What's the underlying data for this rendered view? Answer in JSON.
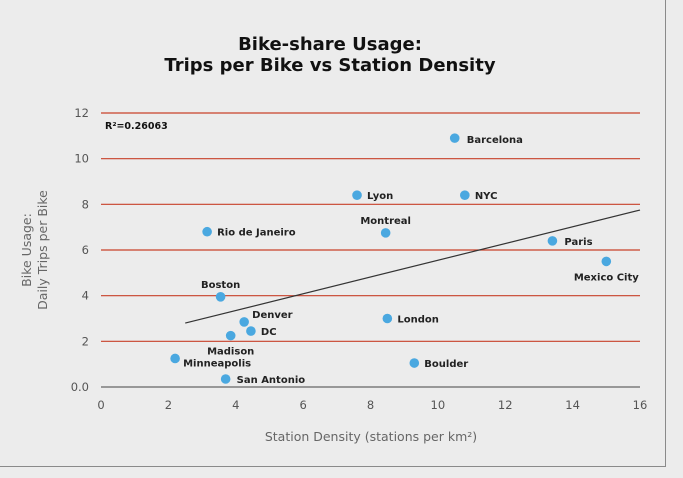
{
  "chart_data": {
    "type": "scatter",
    "title": [
      "Bike-share Usage:",
      "Trips per Bike vs Station Density"
    ],
    "xlabel": "Station Density (stations per km²)",
    "ylabel": [
      "Bike Usage:",
      "Daily Trips per Bike"
    ],
    "xlim": [
      0,
      16
    ],
    "ylim": [
      0,
      12
    ],
    "x_ticks": [
      "0",
      "2",
      "4",
      "6",
      "8",
      "10",
      "12",
      "14",
      "16"
    ],
    "y_ticks": [
      "0.0",
      "2",
      "4",
      "6",
      "8",
      "10",
      "12"
    ],
    "grid": "horizontal",
    "annotation": "R²=0.26063",
    "colors": {
      "point": "#4aa8e0",
      "grid": "#c8412a",
      "trend": "#333333",
      "axis": "#444444"
    },
    "points": [
      {
        "name": "Barcelona",
        "x": 10.5,
        "y": 10.9
      },
      {
        "name": "Lyon",
        "x": 7.6,
        "y": 8.4
      },
      {
        "name": "NYC",
        "x": 10.8,
        "y": 8.4
      },
      {
        "name": "Montreal",
        "x": 8.45,
        "y": 6.75
      },
      {
        "name": "Rio de Janeiro",
        "x": 3.15,
        "y": 6.8
      },
      {
        "name": "Paris",
        "x": 13.4,
        "y": 6.4
      },
      {
        "name": "Mexico City",
        "x": 15.0,
        "y": 5.5
      },
      {
        "name": "Boston",
        "x": 3.55,
        "y": 3.95
      },
      {
        "name": "Denver",
        "x": 4.25,
        "y": 2.85
      },
      {
        "name": "DC",
        "x": 4.45,
        "y": 2.45
      },
      {
        "name": "Madison",
        "x": 3.85,
        "y": 2.25
      },
      {
        "name": "London",
        "x": 8.5,
        "y": 3.0
      },
      {
        "name": "Minneapolis",
        "x": 2.2,
        "y": 1.25
      },
      {
        "name": "San Antonio",
        "x": 3.7,
        "y": 0.35
      },
      {
        "name": "Boulder",
        "x": 9.3,
        "y": 1.05
      }
    ],
    "trendline": {
      "x": [
        2.5,
        16.0
      ],
      "y": [
        2.8,
        7.75
      ]
    }
  }
}
